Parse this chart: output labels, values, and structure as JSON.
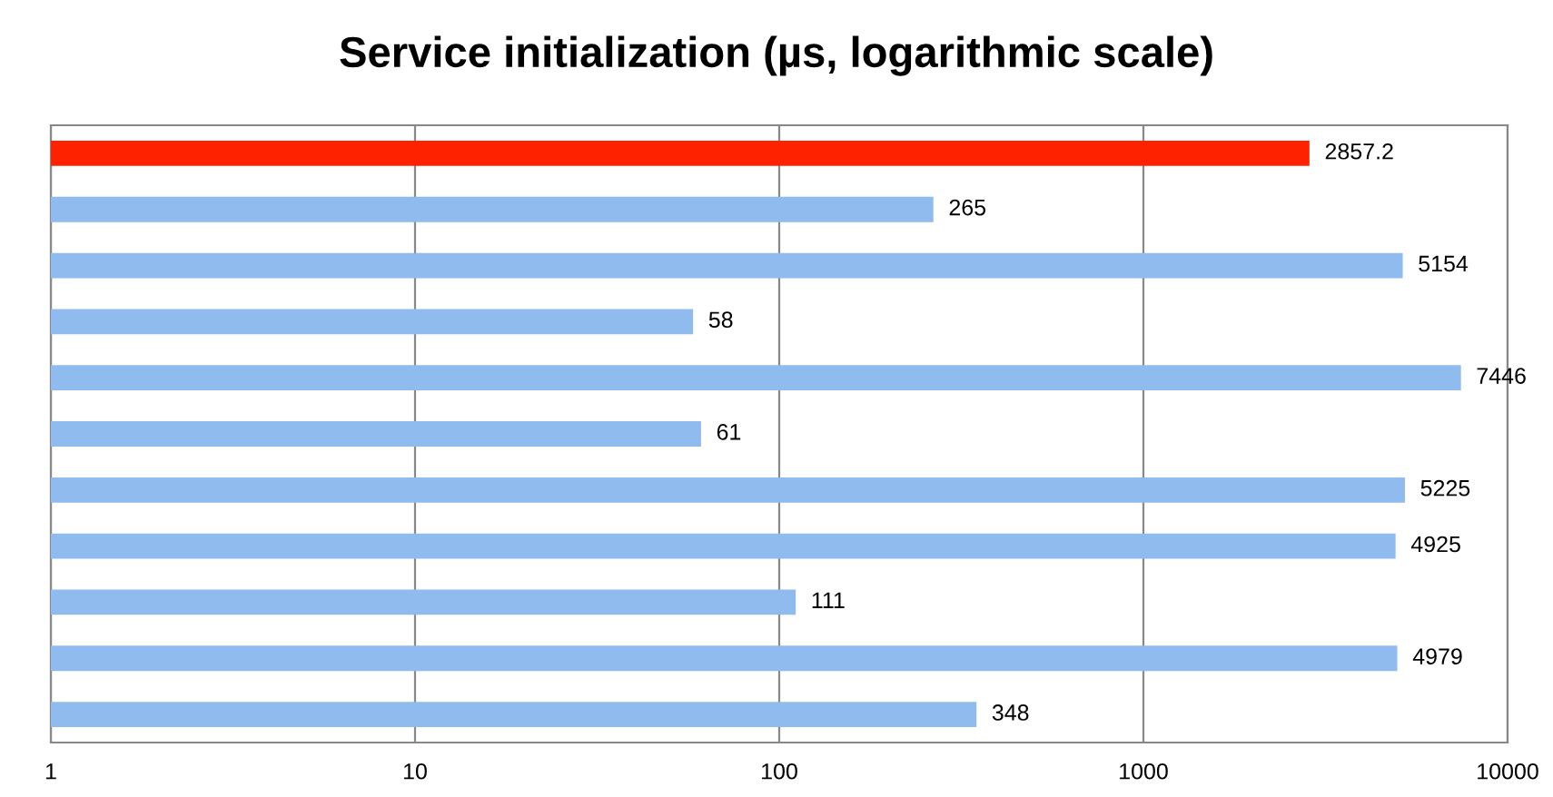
{
  "chart_data": {
    "type": "bar",
    "orientation": "horizontal",
    "title": "Service initialization (µs, logarithmic scale)",
    "categories": [
      null,
      null,
      null,
      null,
      null,
      null,
      null,
      null,
      null,
      null,
      null
    ],
    "values": [
      2857.2,
      265,
      5154,
      58,
      7446,
      61,
      5225,
      4925,
      111,
      4979,
      348
    ],
    "colors": [
      "#ff2200",
      "#8fbbee",
      "#8fbbee",
      "#8fbbee",
      "#8fbbee",
      "#8fbbee",
      "#8fbbee",
      "#8fbbee",
      "#8fbbee",
      "#8fbbee",
      "#8fbbee"
    ],
    "log": "x",
    "xlim": [
      1,
      10000
    ],
    "xticks": [
      1,
      10,
      100,
      1000,
      10000
    ],
    "grid": "x",
    "data_labels": true,
    "legend": false
  }
}
